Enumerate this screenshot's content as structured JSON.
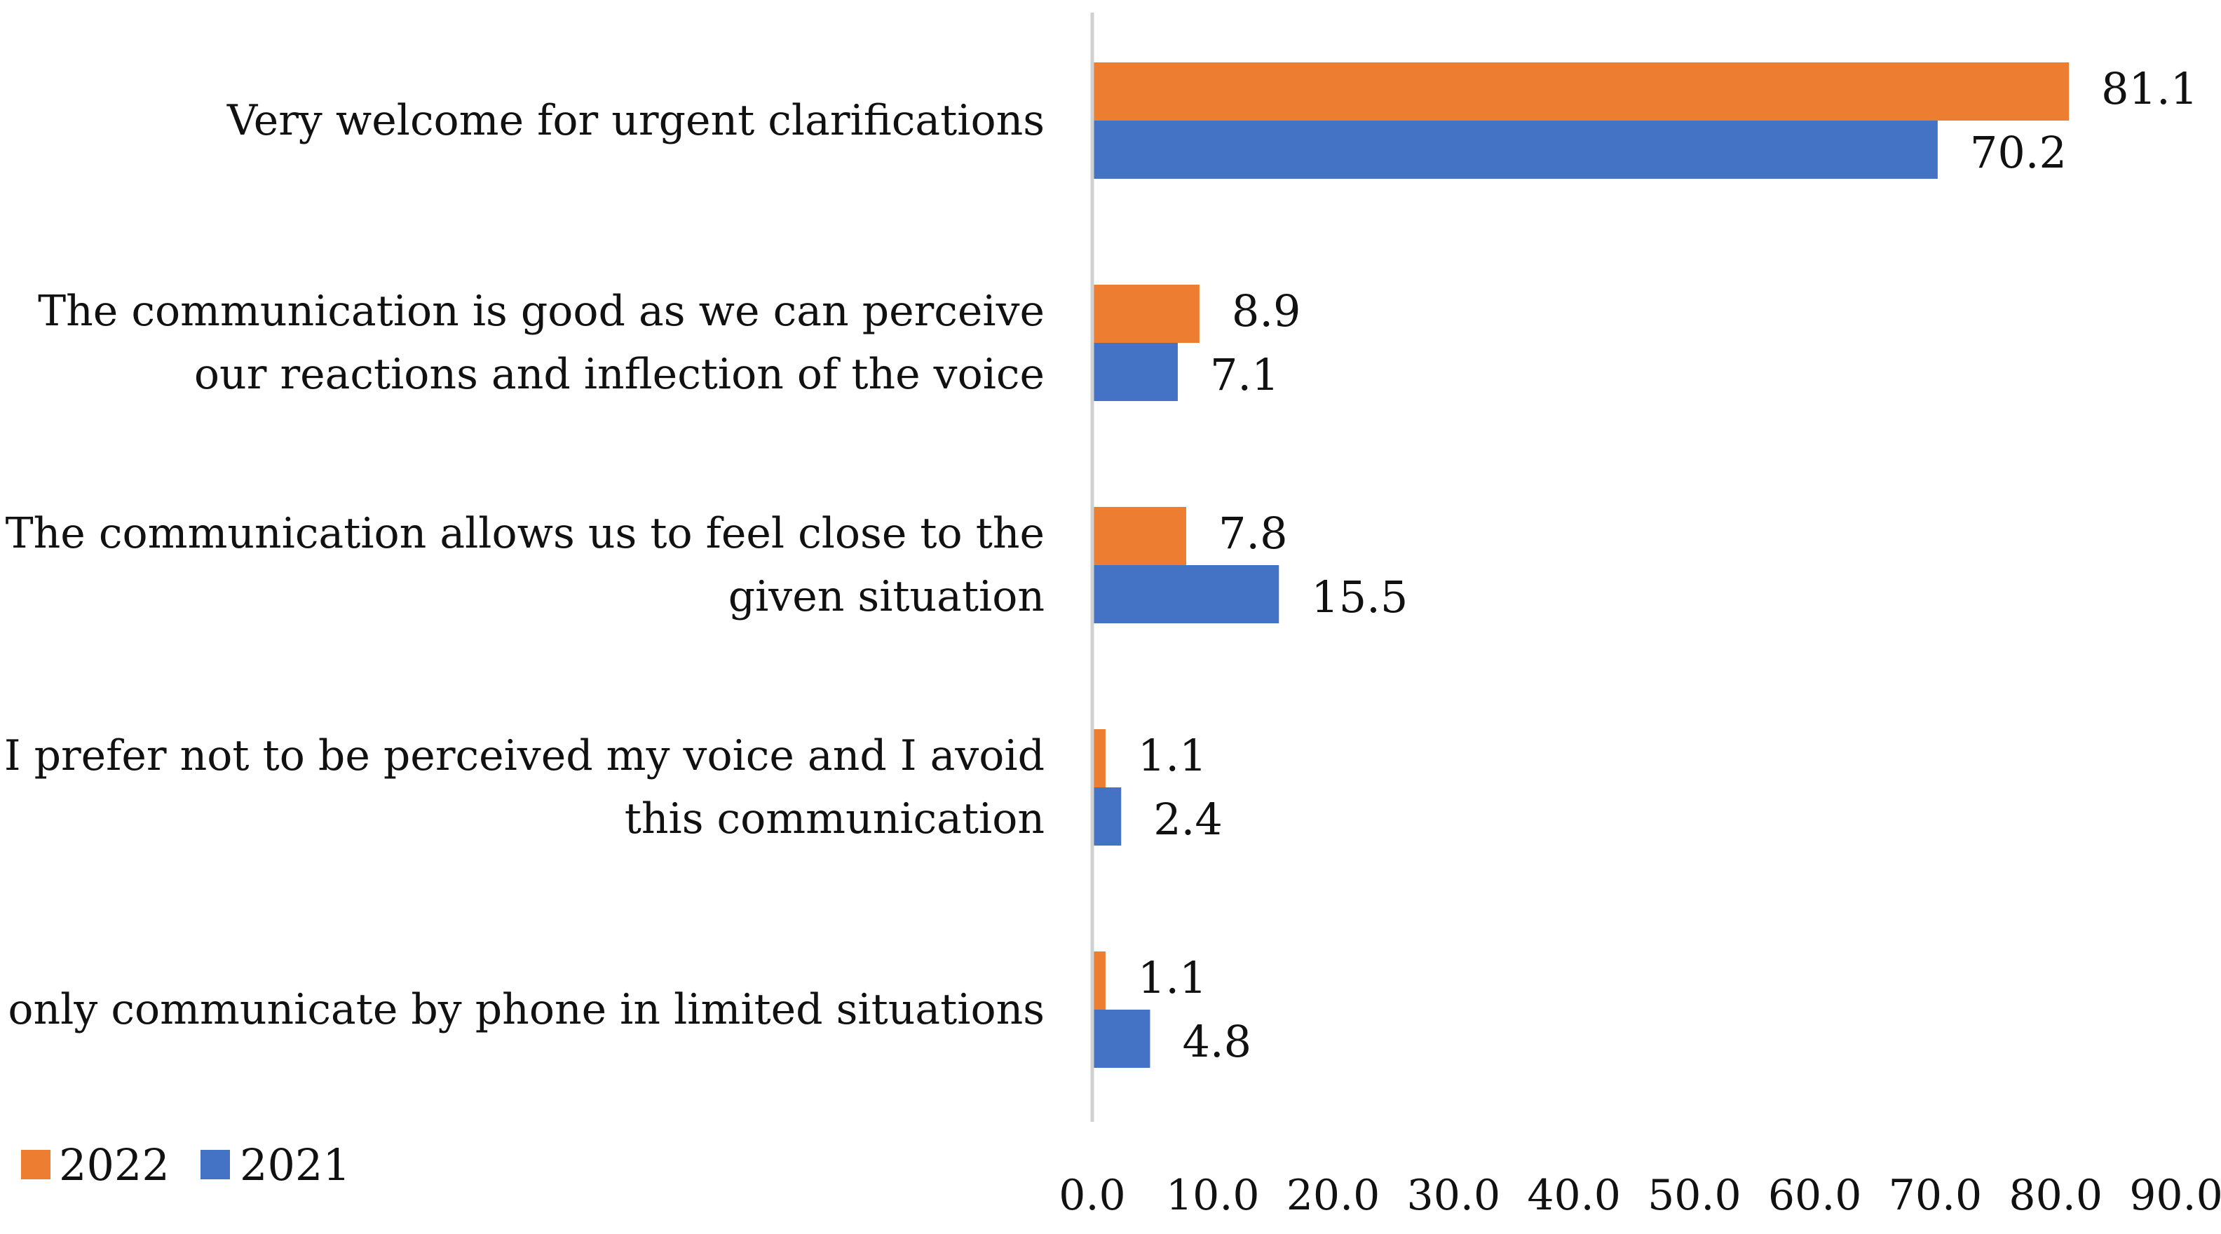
{
  "chart_data": {
    "type": "bar",
    "orientation": "horizontal",
    "categories": [
      [
        "Very welcome for urgent clarifications"
      ],
      [
        "The communication is good as we can perceive",
        "our reactions and inflection of the voice"
      ],
      [
        "The communication allows us to feel close to the",
        "given situation"
      ],
      [
        "I prefer not to be perceived my voice and I avoid",
        "this communication"
      ],
      [
        "I only communicate by phone in limited situations"
      ]
    ],
    "series": [
      {
        "name": "2022",
        "color": "#ED7D31",
        "values": [
          81.1,
          8.9,
          7.8,
          1.1,
          1.1
        ],
        "labels": [
          "81.1",
          "8.9",
          "7.8",
          "1.1",
          "1.1"
        ]
      },
      {
        "name": "2021",
        "color": "#4472C4",
        "values": [
          70.2,
          7.1,
          15.5,
          2.4,
          4.8
        ],
        "labels": [
          "70.2",
          "7.1",
          "15.5",
          "2.4",
          "4.8"
        ]
      }
    ],
    "xlim": [
      0,
      90
    ],
    "xticks": [
      "0.0",
      "10.0",
      "20.0",
      "30.0",
      "40.0",
      "50.0",
      "60.0",
      "70.0",
      "80.0",
      "90.0"
    ],
    "legend": {
      "position": "bottom-left",
      "entries": [
        "2022",
        "2021"
      ]
    },
    "title": "",
    "xlabel": "",
    "ylabel": "",
    "grid": false
  }
}
